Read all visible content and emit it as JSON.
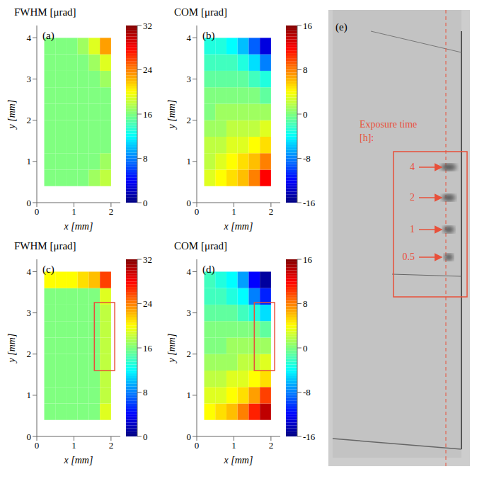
{
  "chart_data": [
    {
      "type": "heatmap",
      "title": "FWHM [μrad]",
      "label": "(a)",
      "x_label": "x [mm]",
      "y_label": "y [mm]",
      "xlim": [
        0,
        2.25
      ],
      "ylim": [
        0,
        4.3
      ],
      "xticks": [
        0,
        1,
        2
      ],
      "yticks": [
        0,
        1,
        2,
        3,
        4
      ],
      "x_edges": [
        0.2,
        0.5,
        0.8,
        1.1,
        1.4,
        1.7,
        2.0
      ],
      "y_edges": [
        0.4,
        0.8,
        1.2,
        1.6,
        2.0,
        2.4,
        2.8,
        3.2,
        3.6,
        4.0
      ],
      "cells": [
        [
          16,
          16,
          16,
          16,
          17,
          18
        ],
        [
          16,
          16,
          16,
          16,
          16,
          17
        ],
        [
          16,
          16,
          16,
          16,
          16,
          16
        ],
        [
          16,
          16,
          16,
          16,
          16,
          16
        ],
        [
          16,
          16,
          16,
          16,
          16,
          16
        ],
        [
          16,
          16,
          16,
          16,
          16,
          16
        ],
        [
          16,
          16,
          16,
          16,
          16,
          17
        ],
        [
          16,
          16,
          16,
          16,
          17,
          19
        ],
        [
          16,
          16,
          16,
          17,
          19,
          23
        ]
      ],
      "color_range": [
        0,
        32
      ],
      "color_ticks": [
        0,
        8,
        16,
        24,
        32
      ]
    },
    {
      "type": "heatmap",
      "title": "COM [μrad]",
      "label": "(b)",
      "x_label": "x [mm]",
      "y_label": "y [mm]",
      "xlim": [
        0,
        2.25
      ],
      "ylim": [
        0,
        4.3
      ],
      "xticks": [
        0,
        1,
        2
      ],
      "yticks": [
        0,
        1,
        2,
        3,
        4
      ],
      "x_edges": [
        0.2,
        0.5,
        0.8,
        1.1,
        1.4,
        1.7,
        2.0
      ],
      "y_edges": [
        0.4,
        0.8,
        1.2,
        1.6,
        2.0,
        2.4,
        2.8,
        3.2,
        3.6,
        4.0
      ],
      "cells": [
        [
          3,
          4,
          5,
          6,
          8,
          12
        ],
        [
          2,
          3,
          4,
          5,
          6,
          8
        ],
        [
          2,
          2,
          3,
          3,
          4,
          5
        ],
        [
          1,
          1,
          2,
          2,
          2,
          3
        ],
        [
          0,
          1,
          1,
          1,
          1,
          1
        ],
        [
          0,
          0,
          0,
          0,
          0,
          -1
        ],
        [
          -1,
          -1,
          -1,
          -1,
          -2,
          -3
        ],
        [
          -2,
          -2,
          -2,
          -3,
          -5,
          -8
        ],
        [
          -3,
          -3,
          -4,
          -6,
          -9,
          -13
        ]
      ],
      "color_range": [
        -16,
        16
      ],
      "color_ticks": [
        -16,
        -8,
        0,
        8,
        16
      ]
    },
    {
      "type": "heatmap",
      "title": "FWHM [μrad]",
      "label": "(c)",
      "x_label": "x [mm]",
      "y_label": "y [mm]",
      "xlim": [
        0,
        2.25
      ],
      "ylim": [
        0,
        4.3
      ],
      "xticks": [
        0,
        1,
        2
      ],
      "yticks": [
        0,
        1,
        2,
        3,
        4
      ],
      "x_edges": [
        0.2,
        0.5,
        0.8,
        1.1,
        1.4,
        1.7,
        2.0
      ],
      "y_edges": [
        0.4,
        0.8,
        1.2,
        1.6,
        2.0,
        2.4,
        2.8,
        3.2,
        3.6,
        4.0
      ],
      "cells": [
        [
          16,
          16,
          16,
          16,
          16,
          19
        ],
        [
          16,
          16,
          16,
          16,
          16,
          18
        ],
        [
          16,
          16,
          16,
          16,
          16,
          18
        ],
        [
          16,
          16,
          16,
          16,
          16,
          18
        ],
        [
          16,
          16,
          16,
          16,
          16,
          18
        ],
        [
          16,
          16,
          16,
          16,
          16,
          18
        ],
        [
          16,
          16,
          16,
          16,
          16,
          18
        ],
        [
          16,
          16,
          16,
          16,
          16,
          19
        ],
        [
          20,
          20,
          20,
          21,
          22,
          26
        ]
      ],
      "color_range": [
        0,
        32
      ],
      "color_ticks": [
        0,
        8,
        16,
        24,
        32
      ],
      "highlight": {
        "x": [
          1.55,
          2.1
        ],
        "y": [
          1.6,
          3.25
        ]
      }
    },
    {
      "type": "heatmap",
      "title": "COM [μrad]",
      "label": "(d)",
      "x_label": "x [mm]",
      "y_label": "y [mm]",
      "xlim": [
        0,
        2.25
      ],
      "ylim": [
        0,
        4.3
      ],
      "xticks": [
        0,
        1,
        2
      ],
      "yticks": [
        0,
        1,
        2,
        3,
        4
      ],
      "x_edges": [
        0.2,
        0.5,
        0.8,
        1.1,
        1.4,
        1.7,
        2.0
      ],
      "y_edges": [
        0.4,
        0.8,
        1.2,
        1.6,
        2.0,
        2.4,
        2.8,
        3.2,
        3.6,
        4.0
      ],
      "cells": [
        [
          4,
          5,
          6,
          8,
          11,
          14
        ],
        [
          3,
          3,
          4,
          5,
          7,
          10
        ],
        [
          2,
          2,
          3,
          3,
          4,
          5
        ],
        [
          1,
          1,
          1,
          2,
          2,
          3
        ],
        [
          0,
          0,
          1,
          1,
          1,
          1
        ],
        [
          0,
          0,
          0,
          0,
          0,
          -1
        ],
        [
          -1,
          -1,
          -1,
          -2,
          -3,
          -5
        ],
        [
          -2,
          -2,
          -3,
          -4,
          -8,
          -11
        ],
        [
          -2,
          -3,
          -4,
          -7,
          -12,
          -15
        ]
      ],
      "color_range": [
        -16,
        16
      ],
      "color_ticks": [
        -16,
        -8,
        0,
        8,
        16
      ],
      "highlight": {
        "x": [
          1.55,
          2.1
        ],
        "y": [
          1.6,
          3.25
        ]
      }
    }
  ],
  "photo": {
    "label": "(e)",
    "annotation": "Exposure time [h]:",
    "exposure_times": [
      4,
      2,
      1,
      0.5
    ]
  }
}
